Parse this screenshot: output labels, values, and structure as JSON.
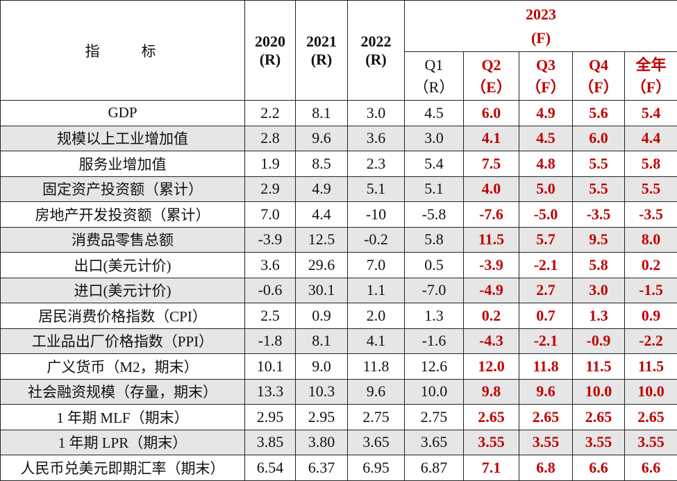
{
  "header": {
    "indicator_label": "指　　标",
    "years": [
      {
        "year": "2020",
        "tag": "(R)"
      },
      {
        "year": "2021",
        "tag": "(R)"
      },
      {
        "year": "2022",
        "tag": "(R)"
      }
    ],
    "forecast_year": "2023",
    "forecast_tag": "(F)",
    "quarters": [
      {
        "label": "Q1",
        "tag": "（R）"
      },
      {
        "label": "Q2",
        "tag": "（E）"
      },
      {
        "label": "Q3",
        "tag": "（F）"
      },
      {
        "label": "Q4",
        "tag": "（F）"
      },
      {
        "label": "全年",
        "tag": "（F）"
      }
    ]
  },
  "rows": [
    {
      "name": "GDP",
      "v": [
        "2.2",
        "8.1",
        "3.0",
        "4.5",
        "6.0",
        "4.9",
        "5.6",
        "5.4"
      ]
    },
    {
      "name": "规模以上工业增加值",
      "v": [
        "2.8",
        "9.6",
        "3.6",
        "3.0",
        "4.1",
        "4.5",
        "6.0",
        "4.4"
      ]
    },
    {
      "name": "服务业增加值",
      "v": [
        "1.9",
        "8.5",
        "2.3",
        "5.4",
        "7.5",
        "4.8",
        "5.5",
        "5.8"
      ]
    },
    {
      "name": "固定资产投资额（累计）",
      "v": [
        "2.9",
        "4.9",
        "5.1",
        "5.1",
        "4.0",
        "5.0",
        "5.5",
        "5.5"
      ]
    },
    {
      "name": "房地产开发投资额（累计）",
      "v": [
        "7.0",
        "4.4",
        "-10",
        "-5.8",
        "-7.6",
        "-5.0",
        "-3.5",
        "-3.5"
      ]
    },
    {
      "name": "消费品零售总额",
      "v": [
        "-3.9",
        "12.5",
        "-0.2",
        "5.8",
        "11.5",
        "5.7",
        "9.5",
        "8.0"
      ]
    },
    {
      "name": "出口(美元计价)",
      "v": [
        "3.6",
        "29.6",
        "7.0",
        "0.5",
        "-3.9",
        "-2.1",
        "5.8",
        "0.2"
      ]
    },
    {
      "name": "进口(美元计价)",
      "v": [
        "-0.6",
        "30.1",
        "1.1",
        "-7.0",
        "-4.9",
        "2.7",
        "3.0",
        "-1.5"
      ]
    },
    {
      "name": "居民消费价格指数（CPI）",
      "v": [
        "2.5",
        "0.9",
        "2.0",
        "1.3",
        "0.2",
        "0.7",
        "1.3",
        "0.9"
      ]
    },
    {
      "name": "工业品出厂价格指数（PPI）",
      "v": [
        "-1.8",
        "8.1",
        "4.1",
        "-1.6",
        "-4.3",
        "-2.1",
        "-0.9",
        "-2.2"
      ]
    },
    {
      "name": "广义货币（M2，期末）",
      "v": [
        "10.1",
        "9.0",
        "11.8",
        "12.6",
        "12.0",
        "11.8",
        "11.5",
        "11.5"
      ]
    },
    {
      "name": "社会融资规模（存量，期末）",
      "v": [
        "13.3",
        "10.3",
        "9.6",
        "10.0",
        "9.8",
        "9.6",
        "10.0",
        "10.0"
      ]
    },
    {
      "name": "1 年期 MLF（期末）",
      "v": [
        "2.95",
        "2.95",
        "2.75",
        "2.75",
        "2.65",
        "2.65",
        "2.65",
        "2.65"
      ]
    },
    {
      "name": "1 年期 LPR（期末）",
      "v": [
        "3.85",
        "3.80",
        "3.65",
        "3.65",
        "3.55",
        "3.55",
        "3.55",
        "3.55"
      ]
    },
    {
      "name": "人民币兑美元即期汇率（期末）",
      "v": [
        "6.54",
        "6.37",
        "6.95",
        "6.87",
        "7.1",
        "6.8",
        "6.6",
        "6.6"
      ]
    }
  ],
  "colors": {
    "forecast_red": "#c00000",
    "shade_gray": "#e6e6e6",
    "border": "#222222"
  }
}
